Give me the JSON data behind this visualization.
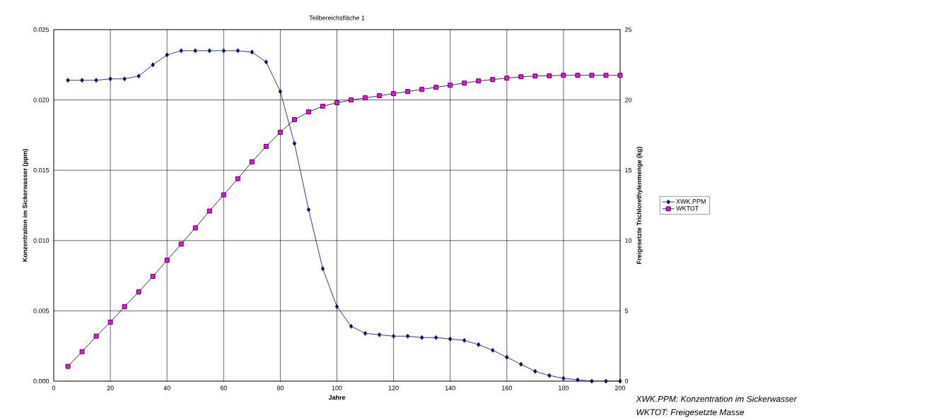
{
  "chart_data": {
    "type": "line",
    "title": "Teilbereichsfläche 1",
    "xlabel": "Jahre",
    "ylabel": "Konzentration im Sickerwasser  (ppm)",
    "y2label": "Freigesetzte Trichlorethylenmenge  (kg)",
    "x": [
      5,
      10,
      15,
      20,
      25,
      30,
      35,
      40,
      45,
      50,
      55,
      60,
      65,
      70,
      75,
      80,
      85,
      90,
      95,
      100,
      105,
      110,
      115,
      120,
      125,
      130,
      135,
      140,
      145,
      150,
      155,
      160,
      165,
      170,
      175,
      180,
      185,
      190,
      195,
      200
    ],
    "series": [
      {
        "name": "XWK.PPM",
        "color": "#000080",
        "marker": "diamond",
        "values": [
          0.0214,
          0.0214,
          0.0214,
          0.0215,
          0.0215,
          0.0217,
          0.0225,
          0.0232,
          0.0235,
          0.0235,
          0.0235,
          0.0235,
          0.0235,
          0.0234,
          0.0227,
          0.0206,
          0.0169,
          0.0122,
          0.008,
          0.0053,
          0.0039,
          0.0034,
          0.0033,
          0.0032,
          0.0032,
          0.0031,
          0.0031,
          0.003,
          0.0029,
          0.0026,
          0.0022,
          0.0017,
          0.0012,
          0.0007,
          0.0004,
          0.0002,
          0.0001,
          0.0,
          0.0,
          0.0
        ]
      },
      {
        "name": "WKTOT",
        "color": "#ff00ff",
        "marker": "square",
        "axis": "y2",
        "values": [
          1.05,
          2.1,
          3.2,
          4.2,
          5.3,
          6.35,
          7.45,
          8.6,
          9.75,
          10.9,
          12.1,
          13.25,
          14.4,
          15.6,
          16.7,
          17.7,
          18.6,
          19.15,
          19.55,
          19.8,
          20.0,
          20.15,
          20.3,
          20.45,
          20.6,
          20.75,
          20.9,
          21.05,
          21.2,
          21.35,
          21.45,
          21.55,
          21.65,
          21.7,
          21.72,
          21.75,
          21.75,
          21.75,
          21.75,
          21.75
        ]
      }
    ],
    "xlim": [
      0,
      200
    ],
    "xticks": [
      0,
      20,
      40,
      60,
      80,
      100,
      120,
      140,
      160,
      180,
      200
    ],
    "ylim": [
      0,
      0.025
    ],
    "yticks": [
      {
        "value": 0,
        "label": "0.000"
      },
      {
        "value": 0.005,
        "label": "0.005"
      },
      {
        "value": 0.01,
        "label": "0.010"
      },
      {
        "value": 0.015,
        "label": "0.015"
      },
      {
        "value": 0.02,
        "label": "0.020"
      },
      {
        "value": 0.025,
        "label": "0.025"
      }
    ],
    "y2lim": [
      0,
      25
    ],
    "y2ticks": [
      0,
      5,
      10,
      15,
      20,
      25
    ],
    "grid": true,
    "legend": "right",
    "line_style": "solid",
    "annotations": [
      "*XWK.PPM: Konzentration im Sickerwasser*",
      "*WKTOT: Freigesetzte Masse*"
    ]
  }
}
